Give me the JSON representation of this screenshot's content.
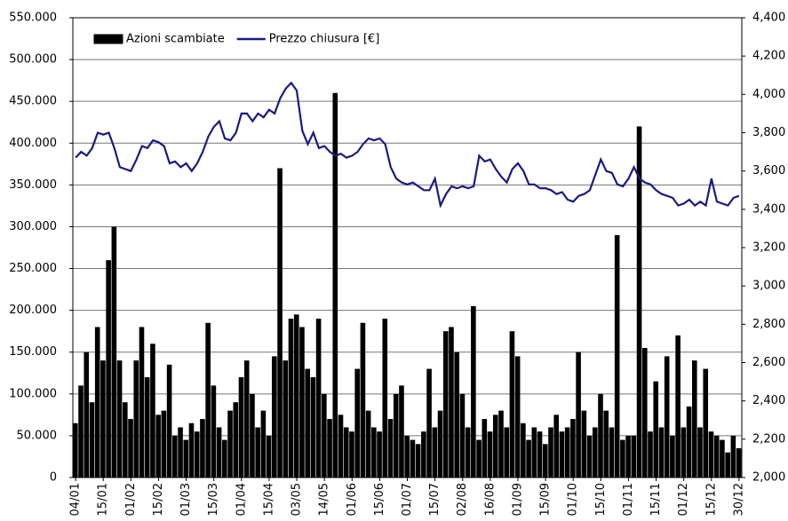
{
  "chart_data": {
    "type": "bar_line",
    "categories": [
      "04/01",
      null,
      null,
      null,
      null,
      "15/01",
      null,
      null,
      null,
      null,
      "01/02",
      null,
      null,
      null,
      null,
      "15/02",
      null,
      null,
      null,
      null,
      "01/03",
      null,
      null,
      null,
      null,
      "15/03",
      null,
      null,
      null,
      null,
      "01/04",
      null,
      null,
      null,
      null,
      "15/04",
      null,
      null,
      null,
      null,
      "03/05",
      null,
      null,
      null,
      null,
      "14/05",
      null,
      null,
      null,
      null,
      "01/06",
      null,
      null,
      null,
      null,
      "15/06",
      null,
      null,
      null,
      null,
      "01/07",
      null,
      null,
      null,
      null,
      "15/07",
      null,
      null,
      null,
      null,
      "02/08",
      null,
      null,
      null,
      null,
      "16/08",
      null,
      null,
      null,
      null,
      "01/09",
      null,
      null,
      null,
      null,
      "15/09",
      null,
      null,
      null,
      null,
      "01/10",
      null,
      null,
      null,
      null,
      "15/10",
      null,
      null,
      null,
      null,
      "01/11",
      null,
      null,
      null,
      null,
      "15/11",
      null,
      null,
      null,
      null,
      "01/12",
      null,
      null,
      null,
      null,
      "15/12",
      null,
      null,
      null,
      null,
      "30/12"
    ],
    "series": [
      {
        "name": "Azioni scambiate",
        "type": "bar",
        "color": "#000000",
        "values": [
          65000,
          110000,
          150000,
          90000,
          180000,
          140000,
          260000,
          300000,
          140000,
          90000,
          70000,
          140000,
          180000,
          120000,
          160000,
          75000,
          80000,
          135000,
          50000,
          60000,
          45000,
          65000,
          55000,
          70000,
          185000,
          110000,
          60000,
          45000,
          80000,
          90000,
          120000,
          140000,
          100000,
          60000,
          80000,
          50000,
          145000,
          370000,
          140000,
          190000,
          195000,
          180000,
          130000,
          120000,
          190000,
          100000,
          70000,
          460000,
          75000,
          60000,
          55000,
          130000,
          185000,
          80000,
          60000,
          55000,
          190000,
          70000,
          100000,
          110000,
          50000,
          45000,
          40000,
          55000,
          130000,
          60000,
          80000,
          175000,
          180000,
          150000,
          100000,
          60000,
          205000,
          45000,
          70000,
          55000,
          75000,
          80000,
          60000,
          175000,
          145000,
          65000,
          45000,
          60000,
          55000,
          40000,
          60000,
          75000,
          55000,
          60000,
          70000,
          150000,
          80000,
          50000,
          60000,
          100000,
          80000,
          60000,
          290000,
          45000,
          50000,
          50000,
          420000,
          155000,
          55000,
          115000,
          60000,
          145000,
          50000,
          170000,
          60000,
          85000,
          140000,
          60000,
          130000,
          55000,
          50000,
          45000,
          30000,
          50000,
          35000
        ]
      },
      {
        "name": "Prezzo chiusura [€]",
        "type": "line",
        "axis": "y2",
        "color": "#1a1a80",
        "values": [
          3670,
          3700,
          3680,
          3720,
          3800,
          3790,
          3800,
          3720,
          3620,
          3610,
          3600,
          3660,
          3730,
          3720,
          3760,
          3750,
          3730,
          3640,
          3650,
          3620,
          3640,
          3600,
          3640,
          3700,
          3780,
          3830,
          3860,
          3770,
          3760,
          3800,
          3900,
          3900,
          3860,
          3900,
          3880,
          3920,
          3900,
          3980,
          4030,
          4060,
          4020,
          3810,
          3740,
          3800,
          3720,
          3730,
          3700,
          3680,
          3690,
          3670,
          3680,
          3700,
          3740,
          3770,
          3760,
          3770,
          3740,
          3620,
          3560,
          3540,
          3530,
          3540,
          3520,
          3500,
          3500,
          3560,
          3420,
          3480,
          3520,
          3510,
          3520,
          3510,
          3520,
          3680,
          3650,
          3660,
          3610,
          3570,
          3540,
          3610,
          3640,
          3600,
          3530,
          3530,
          3510,
          3510,
          3500,
          3480,
          3490,
          3450,
          3440,
          3470,
          3480,
          3500,
          3580,
          3660,
          3600,
          3590,
          3530,
          3520,
          3560,
          3620,
          3560,
          3540,
          3530,
          3500,
          3480,
          3470,
          3460,
          3420,
          3430,
          3450,
          3420,
          3440,
          3420,
          3560,
          3440,
          3430,
          3420,
          3460,
          3470
        ]
      }
    ],
    "ylim": [
      0,
      550000
    ],
    "yticks": [
      0,
      {
        "value": 50000,
        "label": "50.000"
      },
      {
        "value": 100000,
        "label": "100.000"
      },
      {
        "value": 150000,
        "label": "150.000"
      },
      {
        "value": 200000,
        "label": "200.000"
      },
      {
        "value": 250000,
        "label": "250.000"
      },
      {
        "value": 300000,
        "label": "300.000"
      },
      {
        "value": 350000,
        "label": "350.000"
      },
      {
        "value": 400000,
        "label": "400.000"
      },
      {
        "value": 450000,
        "label": "450.000"
      },
      {
        "value": 500000,
        "label": "500.000"
      },
      {
        "value": 550000,
        "label": "550.000"
      }
    ],
    "y2lim": [
      2000,
      4400
    ],
    "y2ticks": [
      {
        "value": 2000,
        "label": "2,000"
      },
      {
        "value": 2200,
        "label": "2,200"
      },
      {
        "value": 2400,
        "label": "2,400"
      },
      {
        "value": 2600,
        "label": "2,600"
      },
      {
        "value": 2800,
        "label": "2,800"
      },
      {
        "value": 3000,
        "label": "3,000"
      },
      {
        "value": 3200,
        "label": "3,200"
      },
      {
        "value": 3400,
        "label": "3,400"
      },
      {
        "value": 3600,
        "label": "3,600"
      },
      {
        "value": 3800,
        "label": "3,800"
      },
      {
        "value": 4000,
        "label": "4,000"
      },
      {
        "value": 4200,
        "label": "4,200"
      },
      {
        "value": 4400,
        "label": "4,400"
      }
    ],
    "grid": true,
    "legend": "top-left"
  }
}
